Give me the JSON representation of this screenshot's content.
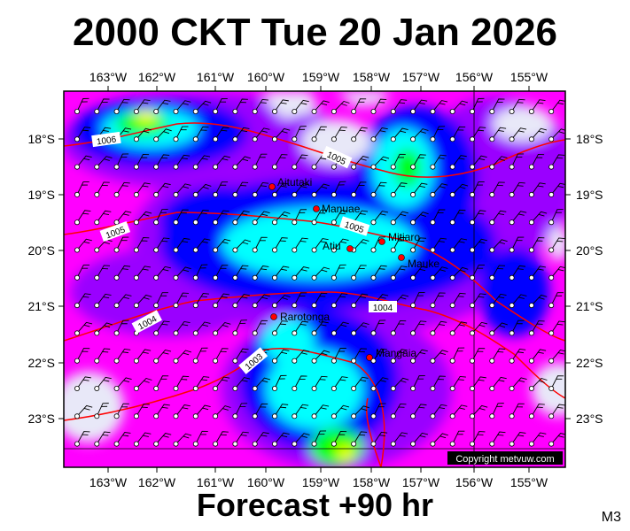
{
  "header": {
    "title": "2000 CKT Tue 20 Jan 2026"
  },
  "footer": {
    "subtitle": "Forecast +90 hr",
    "code": "M3"
  },
  "map": {
    "lon_labels": [
      "163°W",
      "162°W",
      "161°W",
      "160°W",
      "159°W",
      "158°W",
      "157°W",
      "156°W",
      "155°W"
    ],
    "lat_labels": [
      "18°S",
      "19°S",
      "20°S",
      "21°S",
      "22°S",
      "23°S"
    ],
    "copyright": "Copyright metvuw.com",
    "isobars": [
      "1006",
      "1005",
      "1005",
      "1005",
      "1004",
      "1004",
      "1003"
    ],
    "places": [
      {
        "name": "Aitutaki"
      },
      {
        "name": "Manuae"
      },
      {
        "name": "Atiu"
      },
      {
        "name": "Mitiaro"
      },
      {
        "name": "Mauke"
      },
      {
        "name": "Rarotonga"
      },
      {
        "name": "Mangaia"
      }
    ]
  },
  "colors": {
    "frame": "#000000",
    "isobar": "#ff0000",
    "place_dot": "#ff0000",
    "calm": "#e8e8f8",
    "magenta": "#ff00ff",
    "purple": "#9a00ff",
    "blue": "#0000ff",
    "cyan": "#00ffff",
    "green": "#00ff00",
    "yellow": "#ffff00"
  }
}
